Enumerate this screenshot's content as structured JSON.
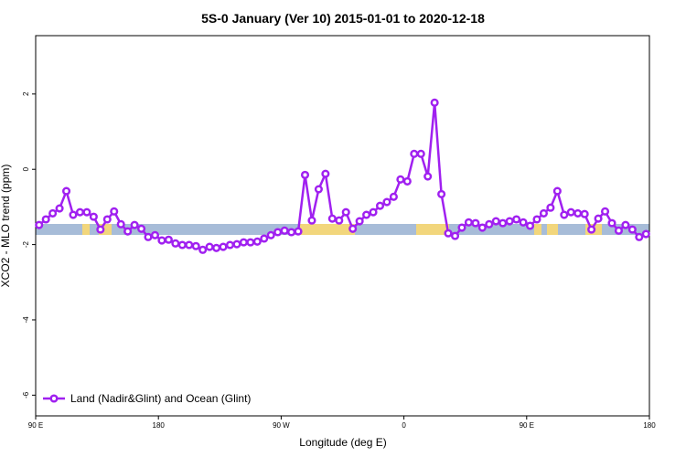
{
  "chart_data": {
    "type": "line",
    "title": "5S-0 January (Ver 10)   2015-01-01 to 2020-12-18",
    "x_label": "Longitude (deg E)",
    "y_label": "XCO2 - MLO trend (ppm)",
    "x": [
      92.5,
      97.5,
      102.5,
      107.5,
      112.5,
      117.5,
      122.5,
      127.5,
      132.5,
      137.5,
      142.5,
      147.5,
      152.5,
      157.5,
      162.5,
      167.5,
      172.5,
      177.5,
      182.5,
      187.5,
      192.5,
      197.5,
      202.5,
      207.5,
      212.5,
      217.5,
      222.5,
      227.5,
      232.5,
      237.5,
      242.5,
      247.5,
      252.5,
      257.5,
      262.5,
      267.5,
      272.5,
      277.5,
      282.5,
      287.5,
      292.5,
      297.5,
      302.5,
      307.5,
      312.5,
      317.5,
      322.5,
      327.5,
      332.5,
      337.5,
      342.5,
      347.5,
      352.5,
      357.5,
      362.5,
      367.5,
      372.5,
      377.5,
      382.5,
      387.5,
      392.5,
      397.5,
      402.5,
      407.5,
      412.5,
      417.5,
      422.5,
      427.5,
      432.5,
      437.5,
      442.5,
      447.5,
      452.5,
      457.5,
      462.5,
      467.5,
      472.5,
      477.5,
      482.5,
      487.5,
      492.5,
      497.5,
      502.5,
      507.5,
      512.5,
      517.5,
      522.5,
      527.5,
      532.5,
      537.5
    ],
    "series": [
      {
        "name": "Land (Nadir&Glint) and Ocean (Glint)",
        "color": "#a020f0",
        "values": [
          -1.48,
          -1.33,
          -1.17,
          -1.04,
          -0.58,
          -1.21,
          -1.14,
          -1.14,
          -1.26,
          -1.6,
          -1.33,
          -1.12,
          -1.46,
          -1.65,
          -1.48,
          -1.58,
          -1.8,
          -1.75,
          -1.89,
          -1.87,
          -1.97,
          -2.01,
          -2.01,
          -2.04,
          -2.14,
          -2.06,
          -2.09,
          -2.06,
          -2.01,
          -1.99,
          -1.94,
          -1.94,
          -1.92,
          -1.84,
          -1.75,
          -1.67,
          -1.63,
          -1.67,
          -1.65,
          -0.15,
          -1.36,
          -0.53,
          -0.12,
          -1.31,
          -1.36,
          -1.14,
          -1.58,
          -1.38,
          -1.21,
          -1.14,
          -0.97,
          -0.87,
          -0.73,
          -0.27,
          -0.32,
          0.41,
          0.41,
          -0.19,
          1.77,
          -0.66,
          -1.7,
          -1.77,
          -1.55,
          -1.41,
          -1.43,
          -1.55,
          -1.46,
          -1.38,
          -1.43,
          -1.38,
          -1.33,
          -1.41,
          -1.5,
          -1.33,
          -1.17,
          -1.02,
          -0.58,
          -1.21,
          -1.14,
          -1.17,
          -1.19,
          -1.6,
          -1.31,
          -1.12,
          -1.43,
          -1.63,
          -1.48,
          -1.6,
          -1.8,
          -1.72
        ]
      }
    ],
    "xlim": [
      90,
      540
    ],
    "xticks": [
      {
        "value": 90,
        "label": "90 E"
      },
      180,
      {
        "value": 270,
        "label": "90 W"
      },
      {
        "value": 360,
        "label": "0"
      },
      {
        "value": 450,
        "label": "90 E"
      },
      {
        "value": 540,
        "label": "180"
      }
    ],
    "ylim": [
      -6.55,
      3.55
    ],
    "yticks": [
      2,
      0,
      -2,
      -4,
      -6
    ],
    "legend": "bottom-left"
  }
}
